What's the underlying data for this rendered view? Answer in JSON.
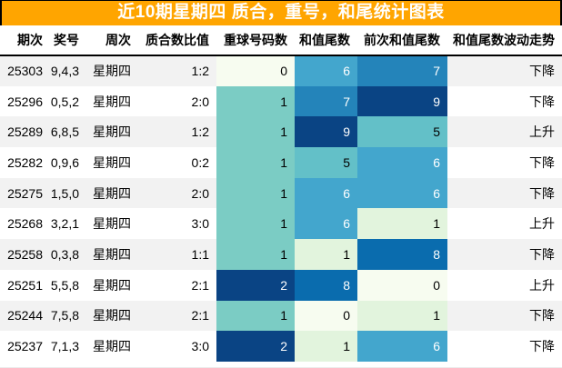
{
  "title": "近10期星期四 质合，重号，和尾统计图表",
  "theme": {
    "title_bg": "#ffa500",
    "title_fg": "#ffffff",
    "border_color": "#000000",
    "row_alt_bg": "#f2f2f2",
    "row_bg": "#ffffff"
  },
  "columns": [
    {
      "key": "period",
      "label": "期次"
    },
    {
      "key": "numbers",
      "label": "奖号"
    },
    {
      "key": "week",
      "label": "周次"
    },
    {
      "key": "ratio",
      "label": "质合数比值"
    },
    {
      "key": "repeat",
      "label": "重球号码数"
    },
    {
      "key": "tail",
      "label": "和值尾数"
    },
    {
      "key": "prev_tail",
      "label": "前次和值尾数"
    },
    {
      "key": "trend",
      "label": "和值尾数波动走势"
    }
  ],
  "heatmap": {
    "tail_scale": {
      "0": {
        "bg": "#f7fcf0",
        "fg": "#000000"
      },
      "1": {
        "bg": "#e2f4dd",
        "fg": "#000000"
      },
      "5": {
        "bg": "#63c0c8",
        "fg": "#000000"
      },
      "6": {
        "bg": "#43a6cd",
        "fg": "#ffffff"
      },
      "7": {
        "bg": "#2484ba",
        "fg": "#ffffff"
      },
      "8": {
        "bg": "#0a6cae",
        "fg": "#ffffff"
      },
      "9": {
        "bg": "#0a4484",
        "fg": "#ffffff"
      }
    },
    "repeat_scale": {
      "0": {
        "bg": "#f7fcf0",
        "fg": "#000000"
      },
      "1": {
        "bg": "#7bccc4",
        "fg": "#000000"
      },
      "2": {
        "bg": "#0a4484",
        "fg": "#ffffff"
      }
    }
  },
  "rows": [
    {
      "period": "25303",
      "numbers": "9,4,3",
      "week": "星期四",
      "ratio": "1:2",
      "repeat": 0,
      "tail": 6,
      "prev_tail": 7,
      "trend": "下降"
    },
    {
      "period": "25296",
      "numbers": "0,5,2",
      "week": "星期四",
      "ratio": "2:0",
      "repeat": 1,
      "tail": 7,
      "prev_tail": 9,
      "trend": "下降"
    },
    {
      "period": "25289",
      "numbers": "6,8,5",
      "week": "星期四",
      "ratio": "1:2",
      "repeat": 1,
      "tail": 9,
      "prev_tail": 5,
      "trend": "上升"
    },
    {
      "period": "25282",
      "numbers": "0,9,6",
      "week": "星期四",
      "ratio": "0:2",
      "repeat": 1,
      "tail": 5,
      "prev_tail": 6,
      "trend": "下降"
    },
    {
      "period": "25275",
      "numbers": "1,5,0",
      "week": "星期四",
      "ratio": "2:0",
      "repeat": 1,
      "tail": 6,
      "prev_tail": 6,
      "trend": "下降"
    },
    {
      "period": "25268",
      "numbers": "3,2,1",
      "week": "星期四",
      "ratio": "3:0",
      "repeat": 1,
      "tail": 6,
      "prev_tail": 1,
      "trend": "上升"
    },
    {
      "period": "25258",
      "numbers": "0,3,8",
      "week": "星期四",
      "ratio": "1:1",
      "repeat": 1,
      "tail": 1,
      "prev_tail": 8,
      "trend": "下降"
    },
    {
      "period": "25251",
      "numbers": "5,5,8",
      "week": "星期四",
      "ratio": "2:1",
      "repeat": 2,
      "tail": 8,
      "prev_tail": 0,
      "trend": "上升"
    },
    {
      "period": "25244",
      "numbers": "7,5,8",
      "week": "星期四",
      "ratio": "2:1",
      "repeat": 1,
      "tail": 0,
      "prev_tail": 1,
      "trend": "下降"
    },
    {
      "period": "25237",
      "numbers": "7,1,3",
      "week": "星期四",
      "ratio": "3:0",
      "repeat": 2,
      "tail": 1,
      "prev_tail": 6,
      "trend": "下降"
    }
  ],
  "chart_data": {
    "type": "table",
    "title": "近10期星期四 质合，重号，和尾统计图表",
    "columns": [
      "期次",
      "奖号",
      "周次",
      "质合数比值",
      "重球号码数",
      "和值尾数",
      "前次和值尾数",
      "和值尾数波动走势"
    ],
    "rows": [
      [
        "25303",
        "9,4,3",
        "星期四",
        "1:2",
        0,
        6,
        7,
        "下降"
      ],
      [
        "25296",
        "0,5,2",
        "星期四",
        "2:0",
        1,
        7,
        9,
        "下降"
      ],
      [
        "25289",
        "6,8,5",
        "星期四",
        "1:2",
        1,
        9,
        5,
        "上升"
      ],
      [
        "25282",
        "0,9,6",
        "星期四",
        "0:2",
        1,
        5,
        6,
        "下降"
      ],
      [
        "25275",
        "1,5,0",
        "星期四",
        "2:0",
        1,
        6,
        6,
        "下降"
      ],
      [
        "25268",
        "3,2,1",
        "星期四",
        "3:0",
        1,
        6,
        1,
        "上升"
      ],
      [
        "25258",
        "0,3,8",
        "星期四",
        "1:1",
        1,
        1,
        8,
        "下降"
      ],
      [
        "25251",
        "5,5,8",
        "星期四",
        "2:1",
        2,
        8,
        0,
        "上升"
      ],
      [
        "25244",
        "7,5,8",
        "星期四",
        "2:1",
        1,
        0,
        1,
        "下降"
      ],
      [
        "25237",
        "7,1,3",
        "星期四",
        "3:0",
        2,
        1,
        6,
        "下降"
      ]
    ],
    "heatmap_columns": [
      "重球号码数",
      "和值尾数",
      "前次和值尾数"
    ],
    "colormap": "GnBu",
    "legend_position": "none",
    "grid": false
  }
}
